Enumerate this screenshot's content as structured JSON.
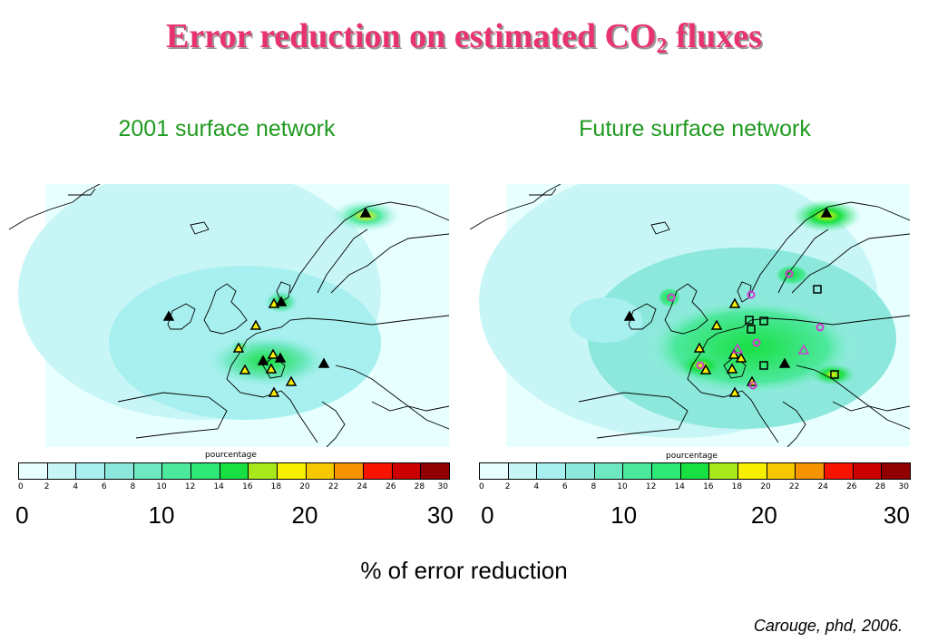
{
  "title": {
    "main": "Error reduction on estimated CO",
    "sub": "2",
    "tail": " fluxes"
  },
  "panels": [
    {
      "subtitle": "2001 surface network",
      "scale_caption": "pourcentage"
    },
    {
      "subtitle": "Future surface network",
      "scale_caption": "pourcentage"
    }
  ],
  "colorbar": {
    "colors": [
      "#e8ffff",
      "#c8f6f6",
      "#a8f0f0",
      "#8ce8dc",
      "#6de8c0",
      "#4ce89c",
      "#2ee878",
      "#18e042",
      "#a6e81c",
      "#f6f000",
      "#f6c800",
      "#f69400",
      "#f61400",
      "#cc0000",
      "#900000"
    ],
    "ticks": [
      "0",
      "2",
      "4",
      "6",
      "8",
      "10",
      "12",
      "14",
      "16",
      "18",
      "20",
      "22",
      "24",
      "26",
      "28",
      "30"
    ],
    "big_labels": [
      "0",
      "10",
      "20",
      "30"
    ]
  },
  "xlabel": "% of error reduction",
  "credit": "Carouge, phd, 2006.",
  "stations": {
    "left_triangles": 14,
    "right_triangles": 14,
    "right_circles": 7,
    "right_squares": 6
  }
}
